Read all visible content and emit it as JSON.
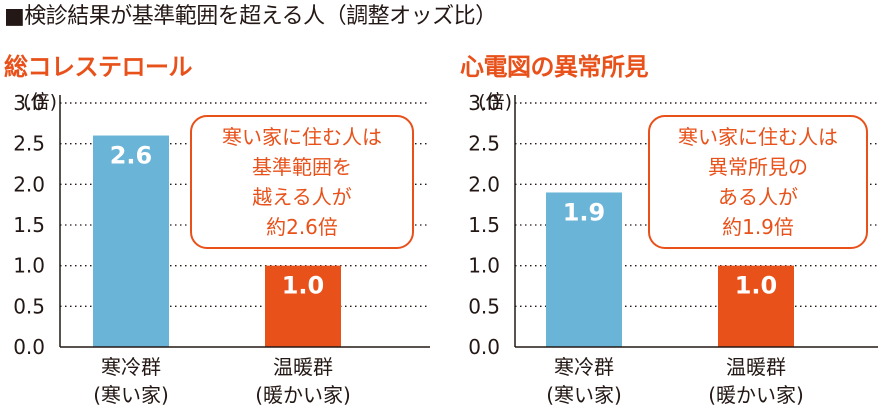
{
  "headline": "■検診結果が基準範囲を超える人（調整オッズ比）",
  "colors": {
    "accent": "#e8511a",
    "cold_bar": "#6ab4d8",
    "warm_bar": "#e8511a",
    "text": "#231815"
  },
  "chart_data": [
    {
      "type": "bar",
      "title": "総コレステロール",
      "ylabel": "(倍)",
      "ylim": [
        0,
        3.0
      ],
      "yticks": [
        "0.0",
        "0.5",
        "1.0",
        "1.5",
        "2.0",
        "2.5",
        "3.0"
      ],
      "categories": [
        [
          "寒冷群",
          "(寒い家)"
        ],
        [
          "温暖群",
          "(暖かい家)"
        ]
      ],
      "values": [
        2.6,
        1.0
      ],
      "value_labels": [
        "2.6",
        "1.0"
      ],
      "annotation": [
        "寒い家に住む人は",
        "基準範囲を",
        "越える人が",
        "約2.6倍"
      ]
    },
    {
      "type": "bar",
      "title": "心電図の異常所見",
      "ylabel": "(倍)",
      "ylim": [
        0,
        3.0
      ],
      "yticks": [
        "0.0",
        "0.5",
        "1.0",
        "1.5",
        "2.0",
        "2.5",
        "3.0"
      ],
      "categories": [
        [
          "寒冷群",
          "(寒い家)"
        ],
        [
          "温暖群",
          "(暖かい家)"
        ]
      ],
      "values": [
        1.9,
        1.0
      ],
      "value_labels": [
        "1.9",
        "1.0"
      ],
      "annotation": [
        "寒い家に住む人は",
        "異常所見の",
        "ある人が",
        "約1.9倍"
      ]
    }
  ]
}
